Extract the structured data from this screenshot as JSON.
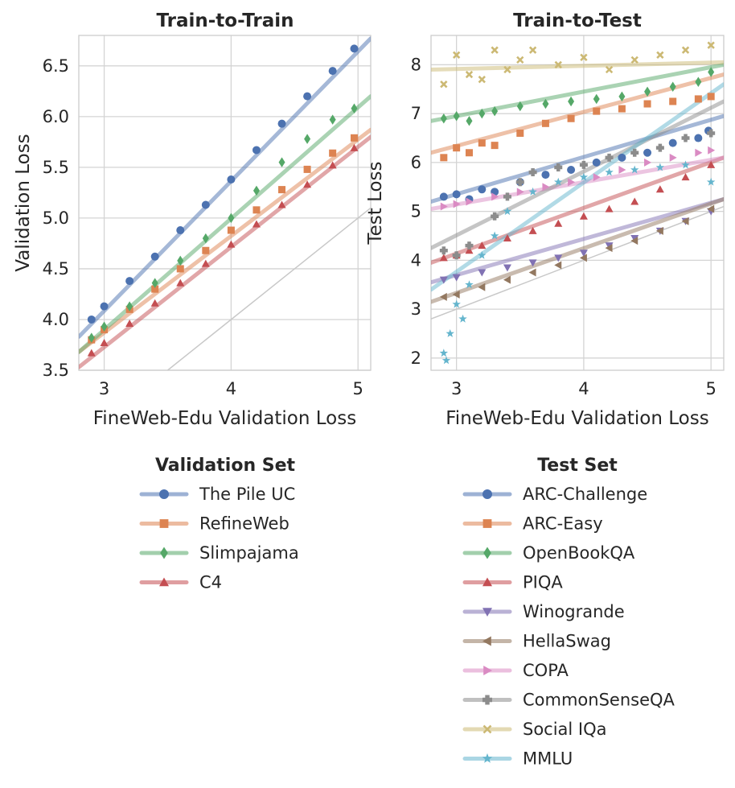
{
  "chart_data": [
    {
      "type": "scatter",
      "title": "Train-to-Train",
      "xlabel": "FineWeb-Edu Validation Loss",
      "ylabel": "Validation Loss",
      "xlim": [
        2.8,
        5.1
      ],
      "ylim": [
        3.5,
        6.8
      ],
      "x_ticks": [
        3,
        4,
        5
      ],
      "y_ticks": [
        3.5,
        4.0,
        4.5,
        5.0,
        5.5,
        6.0,
        6.5
      ],
      "y_tick_labels": [
        "3.5",
        "4.0",
        "4.5",
        "5.0",
        "5.5",
        "6.0",
        "6.5"
      ],
      "grid": true,
      "identity_line": true,
      "legend_title": "Validation Set",
      "legend_position": "below",
      "series": [
        {
          "name": "The Pile UC",
          "color": "#4c72b0",
          "marker": "circle",
          "points": [
            [
              2.9,
              4.0
            ],
            [
              3.0,
              4.13
            ],
            [
              3.2,
              4.38
            ],
            [
              3.4,
              4.62
            ],
            [
              3.6,
              4.88
            ],
            [
              3.8,
              5.13
            ],
            [
              4.0,
              5.38
            ],
            [
              4.2,
              5.67
            ],
            [
              4.4,
              5.93
            ],
            [
              4.6,
              6.2
            ],
            [
              4.8,
              6.45
            ],
            [
              4.97,
              6.67
            ]
          ],
          "fit": [
            [
              2.8,
              3.83
            ],
            [
              5.1,
              6.77
            ]
          ]
        },
        {
          "name": "RefineWeb",
          "color": "#dd8452",
          "marker": "square",
          "points": [
            [
              2.9,
              3.8
            ],
            [
              3.0,
              3.9
            ],
            [
              3.2,
              4.1
            ],
            [
              3.4,
              4.3
            ],
            [
              3.6,
              4.5
            ],
            [
              3.8,
              4.68
            ],
            [
              4.0,
              4.88
            ],
            [
              4.2,
              5.08
            ],
            [
              4.4,
              5.28
            ],
            [
              4.6,
              5.48
            ],
            [
              4.8,
              5.64
            ],
            [
              4.97,
              5.79
            ]
          ],
          "fit": [
            [
              2.8,
              3.68
            ],
            [
              5.1,
              5.87
            ]
          ]
        },
        {
          "name": "Slimpajama",
          "color": "#55a868",
          "marker": "diamond",
          "points": [
            [
              2.9,
              3.82
            ],
            [
              3.0,
              3.93
            ],
            [
              3.2,
              4.13
            ],
            [
              3.4,
              4.36
            ],
            [
              3.6,
              4.58
            ],
            [
              3.8,
              4.8
            ],
            [
              4.0,
              5.0
            ],
            [
              4.2,
              5.27
            ],
            [
              4.4,
              5.55
            ],
            [
              4.6,
              5.78
            ],
            [
              4.8,
              5.97
            ],
            [
              4.97,
              6.08
            ]
          ],
          "fit": [
            [
              2.8,
              3.68
            ],
            [
              5.1,
              6.2
            ]
          ]
        },
        {
          "name": "C4",
          "color": "#c44e52",
          "marker": "triangle-up",
          "points": [
            [
              2.9,
              3.67
            ],
            [
              3.0,
              3.77
            ],
            [
              3.2,
              3.96
            ],
            [
              3.4,
              4.16
            ],
            [
              3.6,
              4.36
            ],
            [
              3.8,
              4.55
            ],
            [
              4.0,
              4.74
            ],
            [
              4.2,
              4.94
            ],
            [
              4.4,
              5.13
            ],
            [
              4.6,
              5.33
            ],
            [
              4.8,
              5.52
            ],
            [
              4.97,
              5.69
            ]
          ],
          "fit": [
            [
              2.8,
              3.53
            ],
            [
              5.1,
              5.8
            ]
          ]
        }
      ]
    },
    {
      "type": "scatter",
      "title": "Train-to-Test",
      "xlabel": "FineWeb-Edu Validation Loss",
      "ylabel": "Test Loss",
      "xlim": [
        2.8,
        5.1
      ],
      "ylim": [
        1.75,
        8.6
      ],
      "x_ticks": [
        3,
        4,
        5
      ],
      "y_ticks": [
        2,
        3,
        4,
        5,
        6,
        7,
        8
      ],
      "y_tick_labels": [
        "2",
        "3",
        "4",
        "5",
        "6",
        "7",
        "8"
      ],
      "grid": true,
      "identity_line": true,
      "legend_title": "Test Set",
      "legend_position": "below",
      "series": [
        {
          "name": "ARC-Challenge",
          "color": "#4c72b0",
          "marker": "circle",
          "points": [
            [
              2.9,
              5.3
            ],
            [
              3.0,
              5.35
            ],
            [
              3.1,
              5.25
            ],
            [
              3.2,
              5.45
            ],
            [
              3.3,
              5.4
            ],
            [
              3.5,
              5.6
            ],
            [
              3.7,
              5.75
            ],
            [
              3.9,
              5.85
            ],
            [
              4.1,
              6.0
            ],
            [
              4.3,
              6.1
            ],
            [
              4.5,
              6.2
            ],
            [
              4.7,
              6.4
            ],
            [
              4.9,
              6.5
            ],
            [
              4.98,
              6.65
            ]
          ],
          "fit": [
            [
              2.8,
              5.2
            ],
            [
              5.1,
              6.95
            ]
          ]
        },
        {
          "name": "ARC-Easy",
          "color": "#dd8452",
          "marker": "square",
          "points": [
            [
              2.9,
              6.1
            ],
            [
              3.0,
              6.3
            ],
            [
              3.1,
              6.2
            ],
            [
              3.2,
              6.4
            ],
            [
              3.3,
              6.35
            ],
            [
              3.5,
              6.6
            ],
            [
              3.7,
              6.8
            ],
            [
              3.9,
              6.9
            ],
            [
              4.1,
              7.05
            ],
            [
              4.3,
              7.1
            ],
            [
              4.5,
              7.2
            ],
            [
              4.7,
              7.25
            ],
            [
              4.9,
              7.3
            ],
            [
              5.0,
              7.35
            ]
          ],
          "fit": [
            [
              2.8,
              6.2
            ],
            [
              5.1,
              7.8
            ]
          ]
        },
        {
          "name": "OpenBookQA",
          "color": "#55a868",
          "marker": "diamond",
          "points": [
            [
              2.9,
              6.9
            ],
            [
              3.0,
              6.95
            ],
            [
              3.1,
              6.85
            ],
            [
              3.2,
              7.0
            ],
            [
              3.3,
              7.05
            ],
            [
              3.5,
              7.15
            ],
            [
              3.7,
              7.2
            ],
            [
              3.9,
              7.25
            ],
            [
              4.1,
              7.3
            ],
            [
              4.3,
              7.35
            ],
            [
              4.5,
              7.45
            ],
            [
              4.7,
              7.55
            ],
            [
              4.9,
              7.65
            ],
            [
              5.0,
              7.85
            ]
          ],
          "fit": [
            [
              2.8,
              6.85
            ],
            [
              5.1,
              8.0
            ]
          ]
        },
        {
          "name": "PIQA",
          "color": "#c44e52",
          "marker": "triangle-up",
          "points": [
            [
              2.9,
              4.05
            ],
            [
              3.0,
              4.1
            ],
            [
              3.1,
              4.2
            ],
            [
              3.2,
              4.3
            ],
            [
              3.4,
              4.45
            ],
            [
              3.6,
              4.6
            ],
            [
              3.8,
              4.75
            ],
            [
              4.0,
              4.9
            ],
            [
              4.2,
              5.05
            ],
            [
              4.4,
              5.2
            ],
            [
              4.6,
              5.45
            ],
            [
              4.8,
              5.7
            ],
            [
              5.0,
              5.95
            ]
          ],
          "fit": [
            [
              2.8,
              3.95
            ],
            [
              5.1,
              6.1
            ]
          ]
        },
        {
          "name": "Winogrande",
          "color": "#8172b3",
          "marker": "triangle-down",
          "points": [
            [
              2.9,
              3.6
            ],
            [
              3.0,
              3.65
            ],
            [
              3.2,
              3.75
            ],
            [
              3.4,
              3.85
            ],
            [
              3.6,
              3.95
            ],
            [
              3.8,
              4.05
            ],
            [
              4.0,
              4.15
            ],
            [
              4.2,
              4.3
            ],
            [
              4.4,
              4.45
            ],
            [
              4.6,
              4.6
            ],
            [
              4.8,
              4.8
            ],
            [
              5.0,
              5.0
            ]
          ],
          "fit": [
            [
              2.8,
              3.55
            ],
            [
              5.1,
              5.25
            ]
          ]
        },
        {
          "name": "HellaSwag",
          "color": "#937860",
          "marker": "triangle-left",
          "points": [
            [
              2.9,
              3.25
            ],
            [
              3.0,
              3.3
            ],
            [
              3.2,
              3.45
            ],
            [
              3.4,
              3.6
            ],
            [
              3.6,
              3.75
            ],
            [
              3.8,
              3.9
            ],
            [
              4.0,
              4.05
            ],
            [
              4.2,
              4.25
            ],
            [
              4.4,
              4.4
            ],
            [
              4.6,
              4.6
            ],
            [
              4.8,
              4.8
            ],
            [
              5.0,
              5.05
            ]
          ],
          "fit": [
            [
              2.8,
              3.15
            ],
            [
              5.1,
              5.25
            ]
          ]
        },
        {
          "name": "COPA",
          "color": "#da8bc3",
          "marker": "triangle-right",
          "points": [
            [
              2.9,
              5.1
            ],
            [
              3.0,
              5.15
            ],
            [
              3.1,
              5.2
            ],
            [
              3.3,
              5.3
            ],
            [
              3.5,
              5.4
            ],
            [
              3.7,
              5.5
            ],
            [
              3.9,
              5.6
            ],
            [
              4.1,
              5.7
            ],
            [
              4.3,
              5.85
            ],
            [
              4.5,
              6.0
            ],
            [
              4.7,
              6.1
            ],
            [
              4.9,
              6.2
            ],
            [
              5.0,
              6.25
            ]
          ],
          "fit": [
            [
              2.8,
              5.05
            ],
            [
              5.1,
              6.1
            ]
          ]
        },
        {
          "name": "CommonSenseQA",
          "color": "#8c8c8c",
          "marker": "plus",
          "points": [
            [
              2.9,
              4.2
            ],
            [
              3.0,
              4.1
            ],
            [
              3.1,
              4.3
            ],
            [
              3.3,
              4.9
            ],
            [
              3.4,
              5.3
            ],
            [
              3.5,
              5.6
            ],
            [
              3.6,
              5.8
            ],
            [
              3.8,
              5.9
            ],
            [
              4.0,
              5.95
            ],
            [
              4.2,
              6.1
            ],
            [
              4.4,
              6.2
            ],
            [
              4.6,
              6.3
            ],
            [
              4.8,
              6.5
            ],
            [
              5.0,
              6.6
            ]
          ],
          "fit": [
            [
              2.8,
              4.25
            ],
            [
              5.1,
              7.25
            ]
          ]
        },
        {
          "name": "Social IQa",
          "color": "#ccb974",
          "marker": "x",
          "points": [
            [
              2.9,
              7.6
            ],
            [
              3.0,
              8.2
            ],
            [
              3.1,
              7.8
            ],
            [
              3.2,
              7.7
            ],
            [
              3.3,
              8.3
            ],
            [
              3.4,
              7.9
            ],
            [
              3.5,
              8.1
            ],
            [
              3.6,
              8.3
            ],
            [
              3.8,
              8.0
            ],
            [
              4.0,
              8.15
            ],
            [
              4.2,
              7.9
            ],
            [
              4.4,
              8.1
            ],
            [
              4.6,
              8.2
            ],
            [
              4.8,
              8.3
            ],
            [
              5.0,
              8.4
            ]
          ],
          "fit": [
            [
              2.8,
              7.9
            ],
            [
              5.1,
              8.05
            ]
          ]
        },
        {
          "name": "MMLU",
          "color": "#64b5cd",
          "marker": "star",
          "points": [
            [
              2.9,
              2.1
            ],
            [
              2.92,
              1.95
            ],
            [
              2.95,
              2.5
            ],
            [
              3.0,
              3.1
            ],
            [
              3.05,
              2.8
            ],
            [
              3.1,
              3.5
            ],
            [
              3.2,
              4.1
            ],
            [
              3.3,
              4.5
            ],
            [
              3.4,
              5.0
            ],
            [
              3.6,
              5.4
            ],
            [
              3.8,
              5.6
            ],
            [
              4.0,
              5.7
            ],
            [
              4.2,
              5.8
            ],
            [
              4.4,
              5.85
            ],
            [
              4.6,
              5.9
            ],
            [
              4.8,
              5.95
            ],
            [
              5.0,
              5.6
            ]
          ],
          "fit": [
            [
              2.8,
              3.4
            ],
            [
              5.1,
              7.6
            ]
          ]
        }
      ]
    }
  ]
}
